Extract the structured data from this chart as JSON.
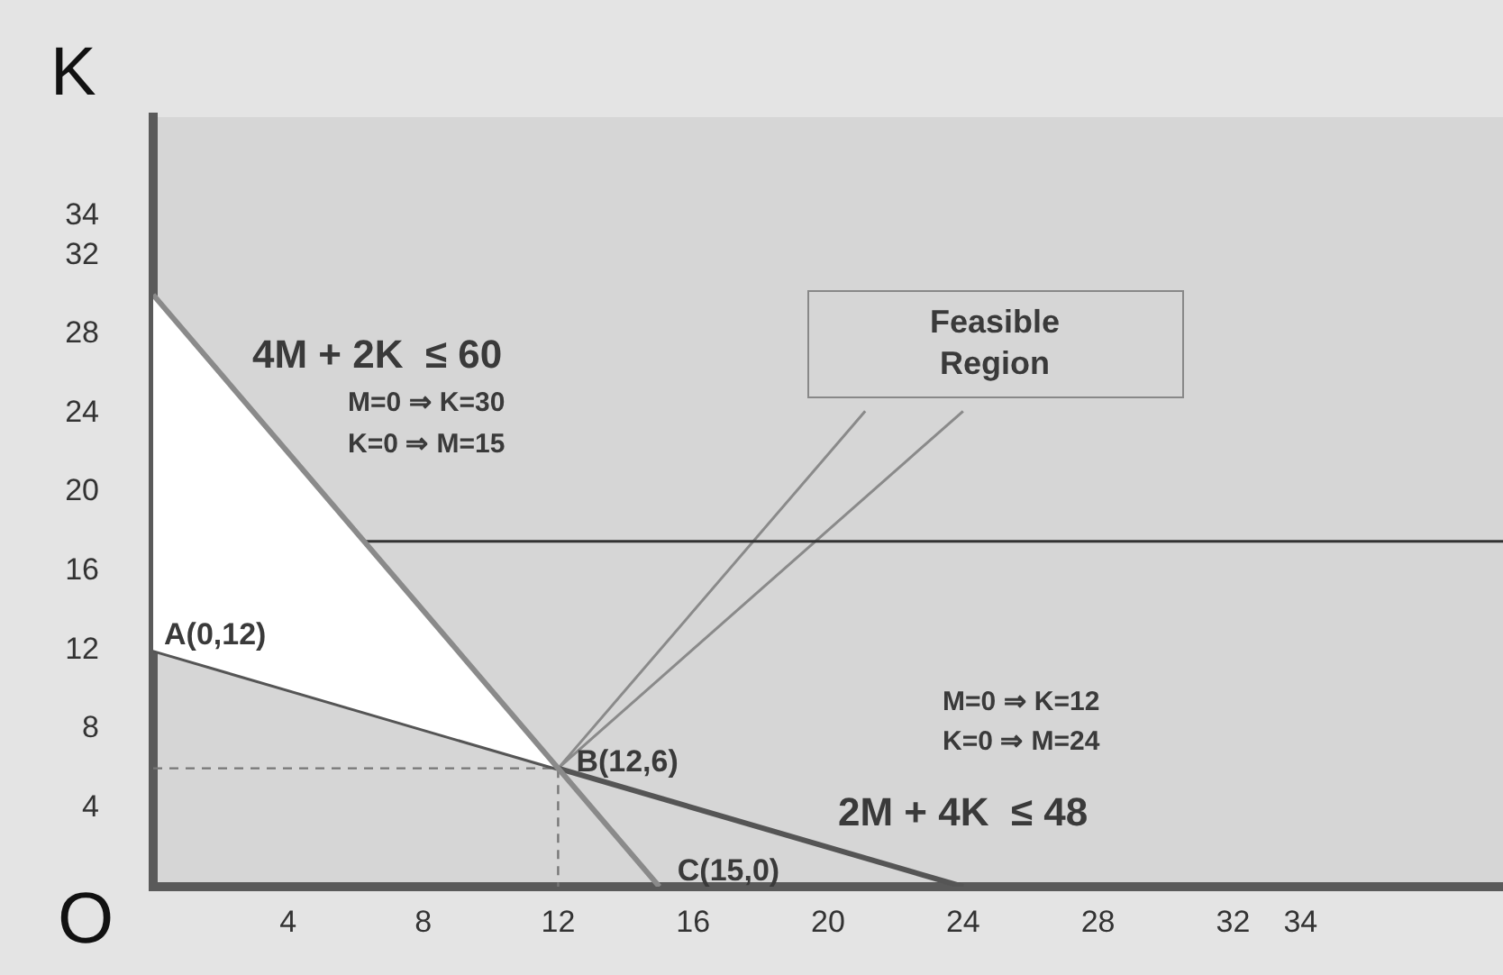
{
  "chart_data": {
    "type": "line",
    "ylabel": "K",
    "xlim": [
      0,
      40
    ],
    "ylim": [
      0,
      39
    ],
    "xticks": [
      4,
      8,
      12,
      16,
      20,
      24,
      28,
      32,
      34
    ],
    "yticks": [
      4,
      8,
      12,
      16,
      20,
      24,
      28,
      32,
      34
    ],
    "grid": false,
    "legend": false,
    "series": [
      {
        "color": "#8a8a8a",
        "x": [
          0,
          15
        ],
        "values": [
          30,
          0
        ]
      },
      {
        "type": "area",
        "color": "#ffffff",
        "x": [
          0,
          0,
          12
        ],
        "values": [
          12,
          30,
          6
        ]
      },
      {
        "color": "#555555",
        "x": [
          0,
          24
        ],
        "values": [
          12,
          0
        ]
      },
      {
        "color": "#333333",
        "x": [
          6.25,
          40
        ],
        "values": [
          17.5,
          17.5
        ]
      },
      {
        "color": "#777777",
        "line_style": "dashed",
        "x": [
          0,
          12,
          12
        ],
        "values": [
          6,
          6,
          0
        ]
      },
      {
        "color": "#8a8a8a",
        "x": [
          21.1,
          12,
          24
        ],
        "values": [
          24.1,
          6,
          24.1
        ]
      }
    ],
    "annotations": [
      "4M + 2K  ≤ 60",
      "M=0 ⇒ K=30",
      "K=0 ⇒ M=15",
      {
        "text": "A(0,12)",
        "x": 0,
        "y": 12
      },
      {
        "text": "B(12,6)",
        "x": 12,
        "y": 6
      },
      {
        "text": "C(15,0)",
        "x": 15,
        "y": 0
      },
      "M=0 ⇒ K=12",
      "K=0 ⇒ M=24",
      "2M + 4K  ≤ 48",
      "Feasible\nRegion",
      "O"
    ]
  }
}
